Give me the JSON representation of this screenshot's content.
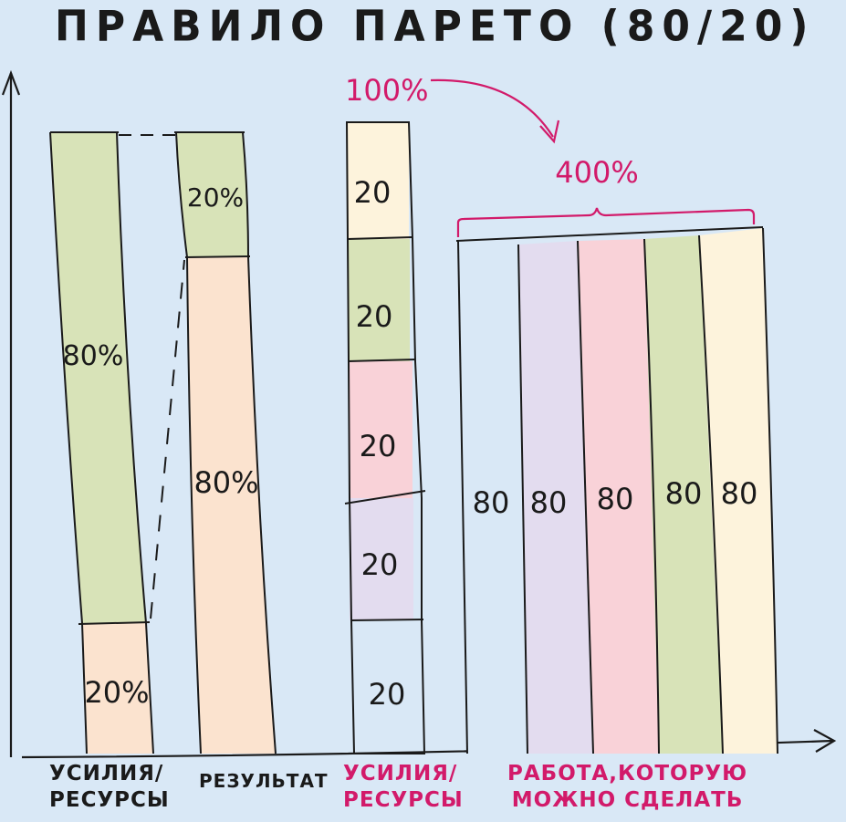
{
  "title": "ПРАВИЛО ПАРЕТО (80/20)",
  "colors": {
    "background": "#d9e8f6",
    "green": "#d8e3b8",
    "peach": "#fbe3cf",
    "cream": "#fdf3dc",
    "pink": "#f9d2d8",
    "lavender": "#e3dcef",
    "ink": "#1a1a1a",
    "accent": "#d21a6a"
  },
  "bar_effort": {
    "top_label": "80%",
    "bottom_label": "20%",
    "top_share": 80,
    "bottom_share": 20
  },
  "bar_result": {
    "top_label": "20%",
    "bottom_label": "80%",
    "top_share": 20,
    "bottom_share": 80
  },
  "stack_bar": {
    "segments": [
      "20",
      "20",
      "20",
      "20",
      "20"
    ],
    "top_label": "100%"
  },
  "increase_label": "400%",
  "work_columns": [
    "80",
    "80",
    "80",
    "80",
    "80"
  ],
  "axis_labels": {
    "effort_line1": "УСИЛИЯ/",
    "effort_line2": "РЕСУРСЫ",
    "result": "РЕЗУЛЬТАТ",
    "effort2_line1": "УСИЛИЯ/",
    "effort2_line2": "РЕСУРСЫ",
    "work_line1": "РАБОТА,КОТОРУЮ",
    "work_line2": "МОЖНО СДЕЛАТЬ"
  }
}
